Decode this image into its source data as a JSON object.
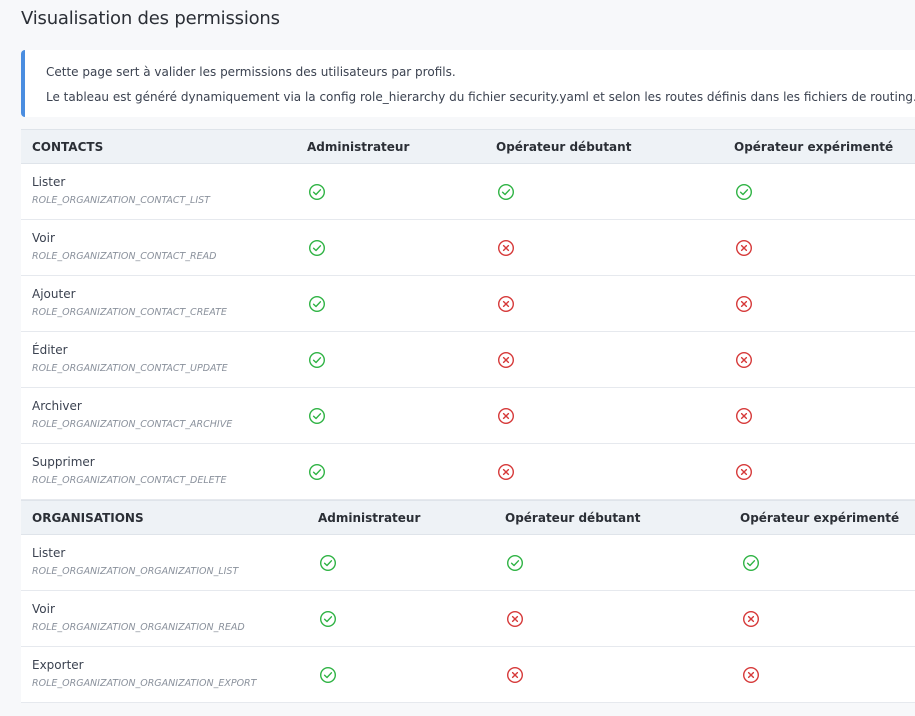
{
  "page": {
    "title": "Visualisation des permissions"
  },
  "info": {
    "line1": "Cette page sert à valider les permissions des utilisateurs par profils.",
    "line2": "Le tableau est généré dynamiquement via la config role_hierarchy du fichier security.yaml et selon les routes définis dans les fichiers de routing."
  },
  "colors": {
    "allowed": "#2fb344",
    "denied": "#d63939",
    "accent": "#4a8de0"
  },
  "icons": {
    "allowed": "circle-check-icon",
    "denied": "circle-x-icon"
  },
  "sections": [
    {
      "title": "CONTACTS",
      "profiles": [
        "Administrateur",
        "Opérateur débutant",
        "Opérateur expérimenté"
      ],
      "rows": [
        {
          "label": "Lister",
          "role": "ROLE_ORGANIZATION_CONTACT_LIST",
          "access": [
            true,
            true,
            true
          ]
        },
        {
          "label": "Voir",
          "role": "ROLE_ORGANIZATION_CONTACT_READ",
          "access": [
            true,
            false,
            false
          ]
        },
        {
          "label": "Ajouter",
          "role": "ROLE_ORGANIZATION_CONTACT_CREATE",
          "access": [
            true,
            false,
            false
          ]
        },
        {
          "label": "Éditer",
          "role": "ROLE_ORGANIZATION_CONTACT_UPDATE",
          "access": [
            true,
            false,
            false
          ]
        },
        {
          "label": "Archiver",
          "role": "ROLE_ORGANIZATION_CONTACT_ARCHIVE",
          "access": [
            true,
            false,
            false
          ]
        },
        {
          "label": "Supprimer",
          "role": "ROLE_ORGANIZATION_CONTACT_DELETE",
          "access": [
            true,
            false,
            false
          ]
        }
      ]
    },
    {
      "title": "ORGANISATIONS",
      "profiles": [
        "Administrateur",
        "Opérateur débutant",
        "Opérateur expérimenté"
      ],
      "rows": [
        {
          "label": "Lister",
          "role": "ROLE_ORGANIZATION_ORGANIZATION_LIST",
          "access": [
            true,
            true,
            true
          ]
        },
        {
          "label": "Voir",
          "role": "ROLE_ORGANIZATION_ORGANIZATION_READ",
          "access": [
            true,
            false,
            false
          ]
        },
        {
          "label": "Exporter",
          "role": "ROLE_ORGANIZATION_ORGANIZATION_EXPORT",
          "access": [
            true,
            false,
            false
          ]
        }
      ]
    }
  ]
}
